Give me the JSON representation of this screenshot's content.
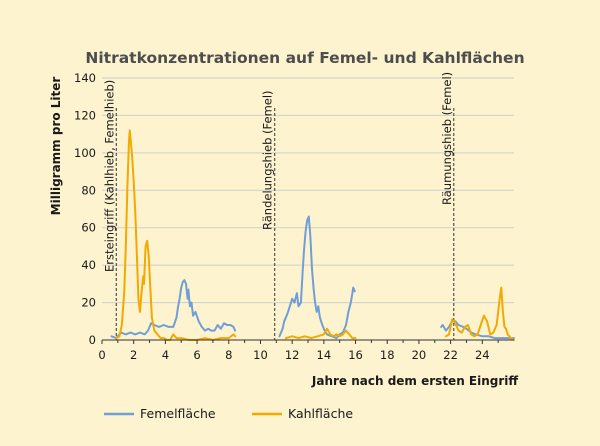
{
  "chart_data": {
    "type": "line",
    "title": "Nitratkonzentrationen auf Femel- und Kahlflächen",
    "xlabel": "Jahre nach dem ersten Eingriff",
    "ylabel": "Milligramm pro Liter",
    "xlim": [
      0,
      26
    ],
    "ylim": [
      0,
      140
    ],
    "xticks": [
      0,
      2,
      4,
      6,
      8,
      10,
      12,
      14,
      16,
      18,
      20,
      22,
      24
    ],
    "yticks": [
      0,
      20,
      40,
      60,
      80,
      100,
      120,
      140
    ],
    "grid": "horizontal",
    "legend": "bottom",
    "colors": {
      "Femelfläche": "#6f9fd5",
      "Kahlfläche": "#f2a900"
    },
    "series": [
      {
        "name": "Femelfläche",
        "segments": [
          [
            [
              0.6,
              2
            ],
            [
              0.9,
              1
            ],
            [
              1.2,
              4
            ],
            [
              1.5,
              3
            ],
            [
              1.8,
              4
            ],
            [
              2.1,
              3
            ],
            [
              2.4,
              4
            ],
            [
              2.7,
              3
            ],
            [
              2.9,
              5
            ],
            [
              3.1,
              9
            ],
            [
              3.3,
              8
            ],
            [
              3.6,
              7
            ],
            [
              3.9,
              8
            ],
            [
              4.2,
              7
            ],
            [
              4.5,
              7
            ],
            [
              4.7,
              12
            ],
            [
              4.8,
              18
            ],
            [
              4.9,
              22
            ],
            [
              5.0,
              28
            ],
            [
              5.1,
              31
            ],
            [
              5.2,
              32
            ],
            [
              5.3,
              30
            ],
            [
              5.4,
              22
            ],
            [
              5.45,
              27
            ],
            [
              5.55,
              18
            ],
            [
              5.65,
              20
            ],
            [
              5.75,
              13
            ],
            [
              5.9,
              15
            ],
            [
              6.1,
              10
            ],
            [
              6.3,
              7
            ],
            [
              6.5,
              5
            ],
            [
              6.7,
              6
            ],
            [
              6.9,
              5
            ],
            [
              7.1,
              5
            ],
            [
              7.3,
              8
            ],
            [
              7.5,
              6
            ],
            [
              7.7,
              9
            ],
            [
              7.9,
              8
            ],
            [
              8.1,
              8
            ],
            [
              8.3,
              7
            ],
            [
              8.4,
              5
            ]
          ],
          [
            [
              11.2,
              2
            ],
            [
              11.4,
              6
            ],
            [
              11.5,
              10
            ],
            [
              11.7,
              14
            ],
            [
              11.85,
              18
            ],
            [
              12.0,
              22
            ],
            [
              12.15,
              20
            ],
            [
              12.3,
              25
            ],
            [
              12.4,
              18
            ],
            [
              12.55,
              20
            ],
            [
              12.65,
              35
            ],
            [
              12.75,
              48
            ],
            [
              12.85,
              58
            ],
            [
              12.95,
              64
            ],
            [
              13.05,
              66
            ],
            [
              13.15,
              55
            ],
            [
              13.25,
              38
            ],
            [
              13.35,
              28
            ],
            [
              13.45,
              20
            ],
            [
              13.55,
              15
            ],
            [
              13.65,
              18
            ],
            [
              13.75,
              12
            ],
            [
              13.9,
              8
            ],
            [
              14.05,
              5
            ],
            [
              14.2,
              3
            ],
            [
              14.5,
              2
            ],
            [
              14.8,
              1
            ],
            [
              15.0,
              3
            ],
            [
              15.2,
              4
            ],
            [
              15.4,
              8
            ],
            [
              15.55,
              15
            ],
            [
              15.7,
              20
            ],
            [
              15.8,
              25
            ],
            [
              15.85,
              28
            ],
            [
              15.95,
              26
            ]
          ],
          [
            [
              21.4,
              7
            ],
            [
              21.5,
              8
            ],
            [
              21.7,
              5
            ],
            [
              21.9,
              7
            ],
            [
              22.1,
              10
            ],
            [
              22.3,
              10
            ],
            [
              22.5,
              8
            ],
            [
              22.8,
              7
            ],
            [
              23.0,
              6
            ],
            [
              23.3,
              4
            ],
            [
              23.6,
              3
            ],
            [
              24.0,
              2
            ],
            [
              24.4,
              2
            ],
            [
              24.8,
              1
            ],
            [
              25.2,
              1
            ],
            [
              25.6,
              1
            ],
            [
              26.0,
              1
            ]
          ]
        ]
      },
      {
        "name": "Kahlfläche",
        "segments": [
          [
            [
              0.9,
              1
            ],
            [
              1.1,
              2
            ],
            [
              1.25,
              8
            ],
            [
              1.4,
              25
            ],
            [
              1.5,
              50
            ],
            [
              1.6,
              82
            ],
            [
              1.7,
              105
            ],
            [
              1.75,
              112
            ],
            [
              1.8,
              108
            ],
            [
              1.9,
              98
            ],
            [
              2.0,
              85
            ],
            [
              2.1,
              68
            ],
            [
              2.2,
              45
            ],
            [
              2.3,
              22
            ],
            [
              2.4,
              15
            ],
            [
              2.5,
              26
            ],
            [
              2.6,
              34
            ],
            [
              2.65,
              30
            ],
            [
              2.75,
              50
            ],
            [
              2.85,
              53
            ],
            [
              2.95,
              45
            ],
            [
              3.05,
              28
            ],
            [
              3.15,
              12
            ],
            [
              3.3,
              5
            ],
            [
              3.5,
              3
            ],
            [
              3.7,
              1
            ],
            [
              3.9,
              1
            ],
            [
              4.1,
              0
            ],
            [
              4.3,
              0
            ],
            [
              4.5,
              3
            ],
            [
              4.7,
              1
            ],
            [
              5.0,
              1
            ],
            [
              5.5,
              0
            ],
            [
              6.0,
              0
            ],
            [
              6.5,
              1
            ],
            [
              7.0,
              0
            ],
            [
              7.5,
              1
            ],
            [
              8.0,
              1
            ],
            [
              8.3,
              3
            ],
            [
              8.4,
              2
            ]
          ],
          [
            [
              11.6,
              1
            ],
            [
              12.0,
              2
            ],
            [
              12.4,
              1
            ],
            [
              12.8,
              2
            ],
            [
              13.2,
              1
            ],
            [
              13.6,
              2
            ],
            [
              14.0,
              3
            ],
            [
              14.2,
              6
            ],
            [
              14.4,
              3
            ],
            [
              14.6,
              2
            ],
            [
              14.8,
              3
            ],
            [
              15.0,
              2
            ],
            [
              15.2,
              3
            ],
            [
              15.4,
              5
            ],
            [
              15.5,
              4
            ],
            [
              15.6,
              3
            ],
            [
              15.8,
              1
            ],
            [
              16.0,
              1
            ]
          ],
          [
            [
              21.7,
              2
            ],
            [
              21.9,
              3
            ],
            [
              22.1,
              11
            ],
            [
              22.3,
              9
            ],
            [
              22.5,
              5
            ],
            [
              22.7,
              4
            ],
            [
              22.9,
              7
            ],
            [
              23.1,
              8
            ],
            [
              23.3,
              3
            ],
            [
              23.5,
              2
            ],
            [
              23.7,
              3
            ],
            [
              23.9,
              8
            ],
            [
              24.1,
              13
            ],
            [
              24.3,
              10
            ],
            [
              24.5,
              3
            ],
            [
              24.7,
              4
            ],
            [
              24.9,
              8
            ],
            [
              25.0,
              15
            ],
            [
              25.1,
              22
            ],
            [
              25.2,
              28
            ],
            [
              25.3,
              15
            ],
            [
              25.4,
              7
            ],
            [
              25.5,
              6
            ],
            [
              25.6,
              3
            ],
            [
              25.8,
              1
            ],
            [
              26.0,
              0
            ]
          ]
        ]
      }
    ],
    "annotations": [
      {
        "x": 0.9,
        "text": "Ersteingriff (Kahlhieb, Femelhieb)"
      },
      {
        "x": 10.9,
        "text": "Rändelungshieb (Femel)"
      },
      {
        "x": 22.2,
        "text": "Räumungshieb (Femel)"
      }
    ]
  }
}
